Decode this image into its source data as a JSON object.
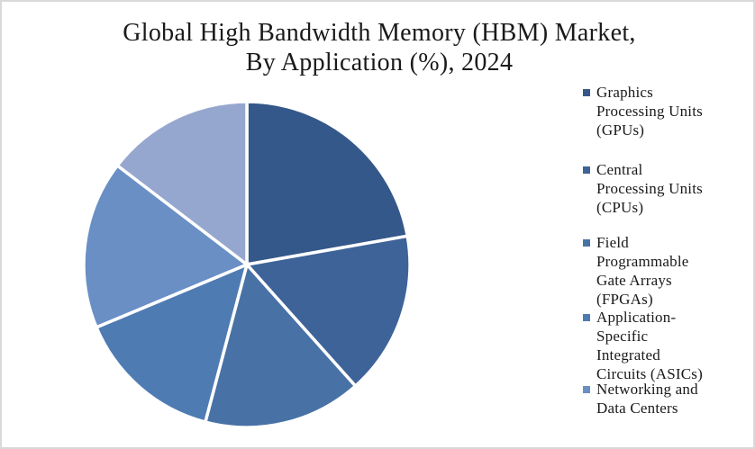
{
  "window": {
    "background_color": "#FFFFFF",
    "border_color": "#D9D9D9"
  },
  "title": {
    "text": "Global High Bandwidth Memory (HBM) Market,\nBy Application (%), 2024",
    "color": "#1A1A1A"
  },
  "chart_data": {
    "type": "pie",
    "title": "Global High Bandwidth Memory (HBM) Market, By Application (%), 2024",
    "unit": "%",
    "start_angle_deg": 0,
    "direction": "clockwise",
    "slice_separator_color": "#FFFFFF",
    "legend_position": "right",
    "series": [
      {
        "label": "Graphics Processing Units (GPUs)",
        "value": 22.2,
        "color": "#35588A"
      },
      {
        "label": "Central Processing Units (CPUs)",
        "value": 16.2,
        "color": "#3E6399"
      },
      {
        "label": "Field Programmable Gate Arrays (FPGAs)",
        "value": 15.7,
        "color": "#4872A6"
      },
      {
        "label": "Application-Specific Integrated Circuits (ASICs)",
        "value": 14.6,
        "color": "#4F7BB3"
      },
      {
        "label": "Networking and Data Centers",
        "value": 16.7,
        "color": "#698FC5"
      },
      {
        "label": "",
        "value": 14.6,
        "color": "#96A7CF"
      }
    ]
  },
  "legend": {
    "items": [
      {
        "label": "Graphics\nProcessing Units\n(GPUs)",
        "color": "#35588A"
      },
      {
        "label": "Central\nProcessing Units\n(CPUs)",
        "color": "#3E6399"
      },
      {
        "label": "Field\nProgrammable\nGate Arrays\n(FPGAs)",
        "color": "#4872A6"
      },
      {
        "label": "Application-\nSpecific\nIntegrated\nCircuits (ASICs)",
        "color": "#4F7BB3"
      },
      {
        "label": "Networking and\nData Centers",
        "color": "#698FC5"
      }
    ]
  }
}
